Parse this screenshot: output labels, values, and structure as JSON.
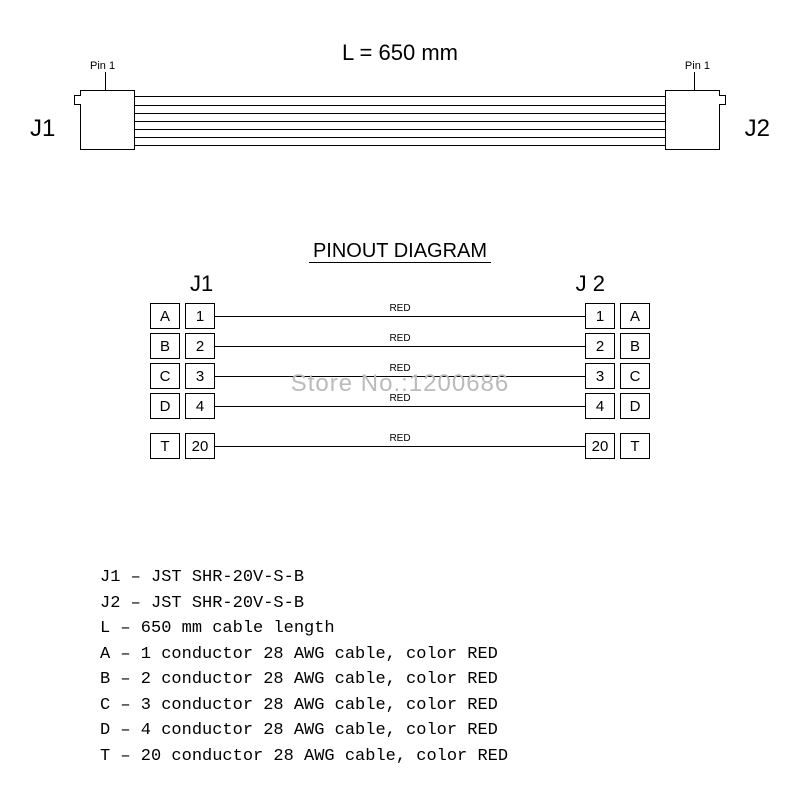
{
  "cable": {
    "length_label": "L = 650 mm",
    "left_conn": "J1",
    "right_conn": "J2",
    "pin1_label": "Pin 1"
  },
  "pinout": {
    "title": "PINOUT DIAGRAM",
    "header_left": "J1",
    "header_right": "J 2",
    "rows": [
      {
        "letter": "A",
        "num": "1",
        "wire": "RED"
      },
      {
        "letter": "B",
        "num": "2",
        "wire": "RED"
      },
      {
        "letter": "C",
        "num": "3",
        "wire": "RED"
      },
      {
        "letter": "D",
        "num": "4",
        "wire": "RED"
      }
    ],
    "gap_row": {
      "letter": "T",
      "num": "20",
      "wire": "RED"
    }
  },
  "legend": {
    "lines": [
      "J1 – JST SHR-20V-S-B",
      "J2 – JST SHR-20V-S-B",
      "L  – 650 mm cable length",
      "A  – 1 conductor 28 AWG cable, color RED",
      "B  – 2 conductor 28 AWG cable, color RED",
      "C  – 3 conductor 28 AWG cable, color RED",
      "D  – 4 conductor 28 AWG cable, color RED",
      "T  – 20 conductor 28 AWG cable, color RED"
    ]
  },
  "watermark": "Store No.:1200686",
  "style": {
    "wire_offsets": [
      8,
      16,
      24,
      32,
      40
    ],
    "line_color": "#000000",
    "background": "#ffffff",
    "watermark_color": "#bbbbbb"
  }
}
